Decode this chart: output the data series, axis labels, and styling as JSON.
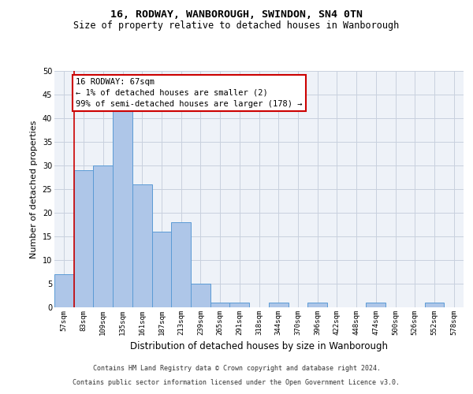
{
  "title_line1": "16, RODWAY, WANBOROUGH, SWINDON, SN4 0TN",
  "title_line2": "Size of property relative to detached houses in Wanborough",
  "xlabel": "Distribution of detached houses by size in Wanborough",
  "ylabel": "Number of detached properties",
  "categories": [
    "57sqm",
    "83sqm",
    "109sqm",
    "135sqm",
    "161sqm",
    "187sqm",
    "213sqm",
    "239sqm",
    "265sqm",
    "291sqm",
    "318sqm",
    "344sqm",
    "370sqm",
    "396sqm",
    "422sqm",
    "448sqm",
    "474sqm",
    "500sqm",
    "526sqm",
    "552sqm",
    "578sqm"
  ],
  "values": [
    7,
    29,
    30,
    42,
    26,
    16,
    18,
    5,
    1,
    1,
    0,
    1,
    0,
    1,
    0,
    0,
    1,
    0,
    0,
    1,
    0
  ],
  "bar_color": "#aec6e8",
  "bar_edge_color": "#5b9bd5",
  "annotation_text": "16 RODWAY: 67sqm\n← 1% of detached houses are smaller (2)\n99% of semi-detached houses are larger (178) →",
  "annotation_box_color": "#ffffff",
  "annotation_box_edge_color": "#cc0000",
  "ylim": [
    0,
    50
  ],
  "yticks": [
    0,
    5,
    10,
    15,
    20,
    25,
    30,
    35,
    40,
    45,
    50
  ],
  "footer_line1": "Contains HM Land Registry data © Crown copyright and database right 2024.",
  "footer_line2": "Contains public sector information licensed under the Open Government Licence v3.0.",
  "bg_color": "#eef2f8",
  "grid_color": "#c8d0de",
  "title_fontsize": 9.5,
  "subtitle_fontsize": 8.5,
  "tick_fontsize": 6.5,
  "ylabel_fontsize": 8.0,
  "xlabel_fontsize": 8.5,
  "footer_fontsize": 6.0,
  "annotation_fontsize": 7.5,
  "red_line_color": "#cc0000"
}
